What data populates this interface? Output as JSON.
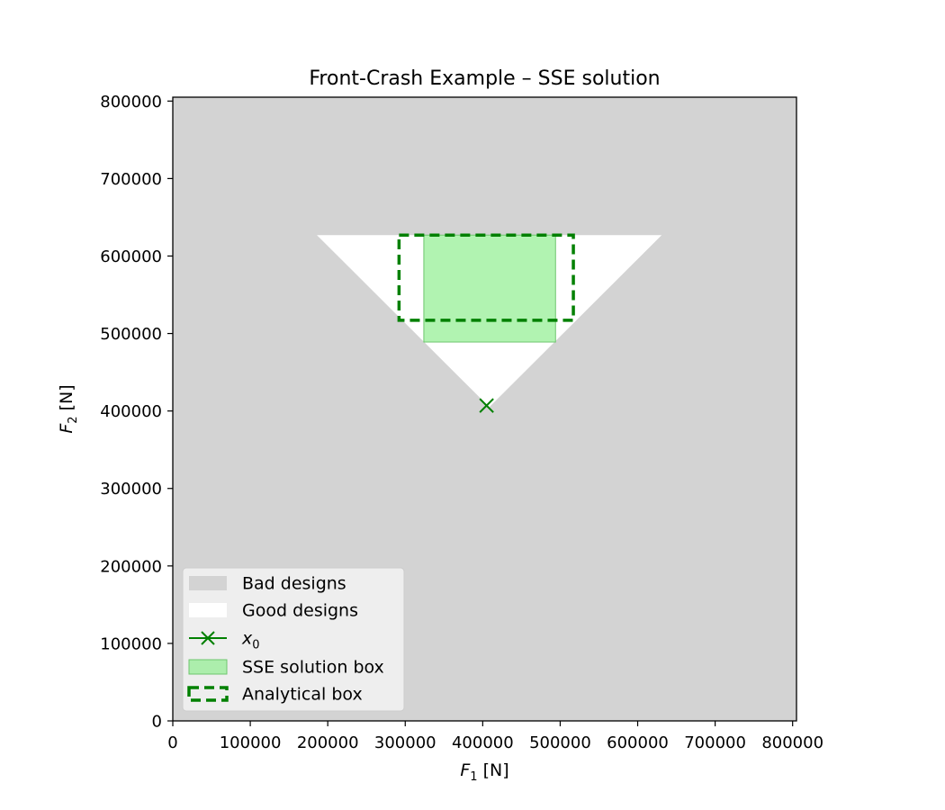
{
  "chart_data": {
    "type": "region-plot",
    "title": "Front-Crash Example – SSE solution",
    "xlabel": {
      "symbol": "F",
      "sub": "1",
      "unit": " [N]"
    },
    "ylabel": {
      "symbol": "F",
      "sub": "2",
      "unit": " [N]"
    },
    "xlim": [
      0,
      805000
    ],
    "ylim": [
      0,
      805000
    ],
    "xticks": [
      0,
      100000,
      200000,
      300000,
      400000,
      500000,
      600000,
      700000,
      800000
    ],
    "yticks": [
      0,
      100000,
      200000,
      300000,
      400000,
      500000,
      600000,
      700000,
      800000
    ],
    "x_tick_labels": [
      "0",
      "100000",
      "200000",
      "300000",
      "400000",
      "500000",
      "600000",
      "700000",
      "800000"
    ],
    "y_tick_labels": [
      "0",
      "100000",
      "200000",
      "300000",
      "400000",
      "500000",
      "600000",
      "700000",
      "800000"
    ],
    "grid": false,
    "legend_position": "lower-left",
    "colors": {
      "bad": "#d3d3d3",
      "good": "#ffffff",
      "marker": "#008000",
      "sse_fill": "#90ee90",
      "sse_edge": "#6ec66e",
      "analytical": "#008000"
    },
    "good_region": {
      "vertices": [
        [
          186000,
          627000
        ],
        [
          631000,
          627000
        ],
        [
          408500,
          405000
        ]
      ]
    },
    "x0": {
      "x": 405000,
      "y": 407000
    },
    "sse_box": {
      "x": [
        324000,
        494000
      ],
      "y": [
        489000,
        627000
      ]
    },
    "analytical_box": {
      "x": [
        292000,
        517000
      ],
      "y": [
        517000,
        627000
      ]
    },
    "legend": [
      {
        "key": "bad",
        "label": "Bad designs"
      },
      {
        "key": "good",
        "label": "Good designs"
      },
      {
        "key": "x0",
        "label_symbol": "x",
        "label_sub": "0"
      },
      {
        "key": "sse",
        "label": "SSE solution box"
      },
      {
        "key": "analytical",
        "label": "Analytical box"
      }
    ]
  }
}
